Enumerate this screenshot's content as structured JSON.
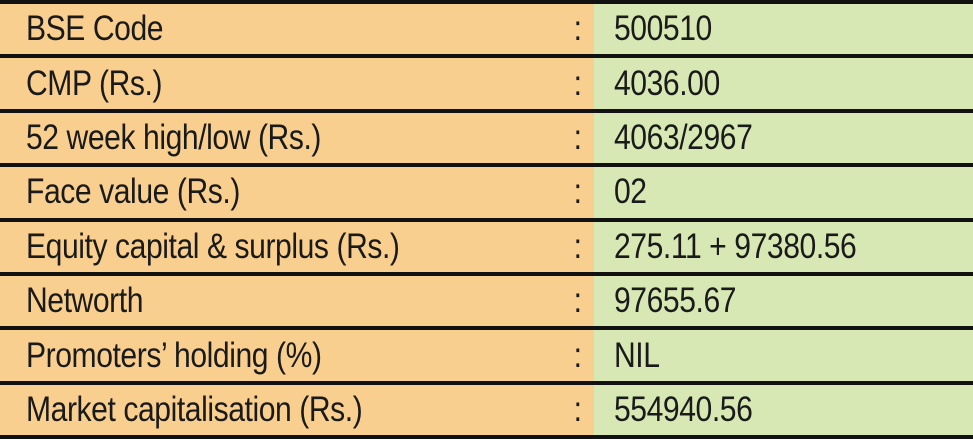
{
  "rows": [
    {
      "label": "BSE Code",
      "colon": ":",
      "value": "500510"
    },
    {
      "label": "CMP (Rs.)",
      "colon": ":",
      "value": "4036.00"
    },
    {
      "label": "52 week high/low (Rs.)",
      "colon": ":",
      "value": "4063/2967"
    },
    {
      "label": "Face value (Rs.)",
      "colon": ":",
      "value": "02"
    },
    {
      "label": "Equity capital & surplus (Rs.)",
      "colon": ":",
      "value": "275.11 + 97380.56"
    },
    {
      "label": "Networth",
      "colon": ":",
      "value": "97655.67"
    },
    {
      "label": "Promoters’ holding (%)",
      "colon": ":",
      "value": "NIL"
    },
    {
      "label": "Market capitalisation (Rs.)",
      "colon": ":",
      "value": "554940.56"
    }
  ],
  "colors": {
    "label_background": "#f9cf8f",
    "value_background": "#d8e8b4",
    "rule": "#111111"
  }
}
